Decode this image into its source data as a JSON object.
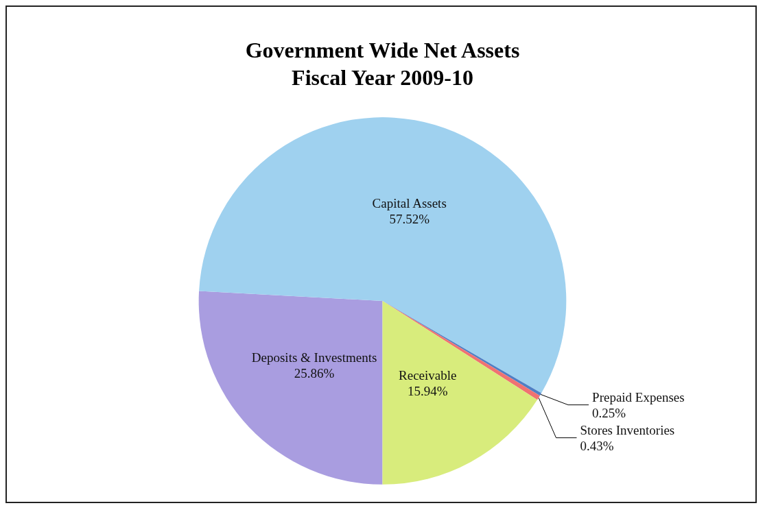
{
  "chart_data": {
    "type": "pie",
    "title": "Government Wide Net Assets\nFiscal Year 2009-10",
    "categories": [
      "Deposits & Investments",
      "Capital Assets",
      "Prepaid Expenses",
      "Stores Inventories",
      "Receivable"
    ],
    "values": [
      25.86,
      57.52,
      0.25,
      0.43,
      15.94
    ],
    "colors": [
      "#a99de0",
      "#9fd1ef",
      "#4f7fc4",
      "#f07272",
      "#d8ec7c"
    ],
    "value_labels": [
      "25.86%",
      "57.52%",
      "0.25%",
      "0.43%",
      "15.94%"
    ]
  }
}
